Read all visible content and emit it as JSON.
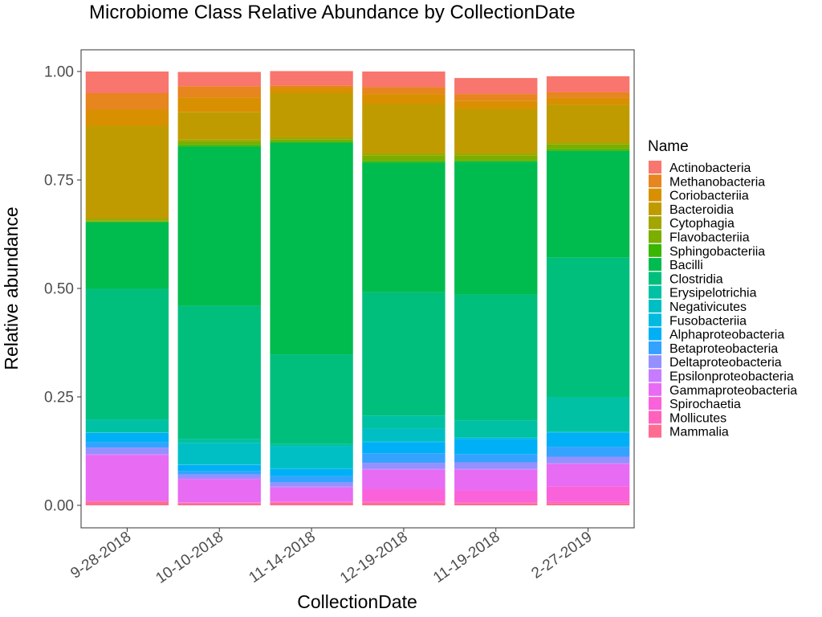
{
  "chart_data": {
    "type": "bar",
    "stacked": true,
    "title": "Microbiome Class Relative Abundance by CollectionDate",
    "xlabel": "CollectionDate",
    "ylabel": "Relative abundance",
    "ylim": [
      0,
      1
    ],
    "yticks": [
      "0.00",
      "0.25",
      "0.50",
      "0.75",
      "1.00"
    ],
    "ytick_values": [
      0,
      0.25,
      0.5,
      0.75,
      1.0
    ],
    "grid": false,
    "legend_title": "Name",
    "legend_position": "right",
    "categories": [
      "9-28-2018",
      "10-10-2018",
      "11-14-2018",
      "12-19-2018",
      "11-19-2018",
      "2-27-2019"
    ],
    "series": [
      {
        "name": "Actinobacteria",
        "color": "#F8766D",
        "values": [
          0.05,
          0.033,
          0.033,
          0.036,
          0.037,
          0.037
        ]
      },
      {
        "name": "Methanobacteria",
        "color": "#E7851E",
        "values": [
          0.038,
          0.026,
          0.006,
          0.016,
          0.016,
          0.013
        ]
      },
      {
        "name": "Coriobacteriia",
        "color": "#D89000",
        "values": [
          0.037,
          0.033,
          0.012,
          0.023,
          0.019,
          0.016
        ]
      },
      {
        "name": "Bacteroidia",
        "color": "#C09B00",
        "values": [
          0.213,
          0.063,
          0.101,
          0.113,
          0.101,
          0.086
        ]
      },
      {
        "name": "Cytophagia",
        "color": "#A3A500",
        "values": [
          0.005,
          0.005,
          0.005,
          0.005,
          0.005,
          0.005
        ]
      },
      {
        "name": "Flavobacteriia",
        "color": "#7CAE00",
        "values": [
          0.003,
          0.008,
          0.006,
          0.013,
          0.012,
          0.011
        ]
      },
      {
        "name": "Sphingobacteriia",
        "color": "#39B600",
        "values": [
          0.002,
          0.004,
          0.002,
          0.004,
          0.003,
          0.004
        ]
      },
      {
        "name": "Bacilli",
        "color": "#00BB4E",
        "values": [
          0.153,
          0.367,
          0.488,
          0.299,
          0.306,
          0.246
        ]
      },
      {
        "name": "Clostridia",
        "color": "#00BF7D",
        "values": [
          0.301,
          0.307,
          0.207,
          0.284,
          0.29,
          0.322
        ]
      },
      {
        "name": "Erysipelotrichia",
        "color": "#00C1A3",
        "values": [
          0.03,
          0.01,
          0.005,
          0.03,
          0.04,
          0.08
        ]
      },
      {
        "name": "Negativicutes",
        "color": "#00BFC4",
        "values": [
          0.0,
          0.049,
          0.051,
          0.03,
          0.0,
          0.0
        ]
      },
      {
        "name": "Fusobacteriia",
        "color": "#00BAE0",
        "values": [
          0.001,
          0.001,
          0.001,
          0.001,
          0.003,
          0.001
        ]
      },
      {
        "name": "Alphaproteobacteria",
        "color": "#00B0F6",
        "values": [
          0.022,
          0.014,
          0.017,
          0.026,
          0.035,
          0.033
        ]
      },
      {
        "name": "Betaproteobacteria",
        "color": "#35A2FF",
        "values": [
          0.012,
          0.008,
          0.014,
          0.022,
          0.019,
          0.023
        ]
      },
      {
        "name": "Deltaproteobacteria",
        "color": "#9590FF",
        "values": [
          0.015,
          0.009,
          0.01,
          0.014,
          0.015,
          0.015
        ]
      },
      {
        "name": "Epsilonproteobacteria",
        "color": "#C77CFF",
        "values": [
          0.002,
          0.002,
          0.002,
          0.002,
          0.002,
          0.002
        ]
      },
      {
        "name": "Gammaproteobacteria",
        "color": "#E76BF3",
        "values": [
          0.106,
          0.053,
          0.032,
          0.044,
          0.047,
          0.051
        ]
      },
      {
        "name": "Spirochaetia",
        "color": "#FA62DB",
        "values": [
          0.0,
          0.001,
          0.001,
          0.03,
          0.028,
          0.036
        ]
      },
      {
        "name": "Mollicutes",
        "color": "#FF62BC",
        "values": [
          0.001,
          0.001,
          0.002,
          0.002,
          0.002,
          0.003
        ]
      },
      {
        "name": "Mammalia",
        "color": "#FF6C91",
        "values": [
          0.009,
          0.005,
          0.006,
          0.006,
          0.005,
          0.005
        ]
      }
    ]
  }
}
